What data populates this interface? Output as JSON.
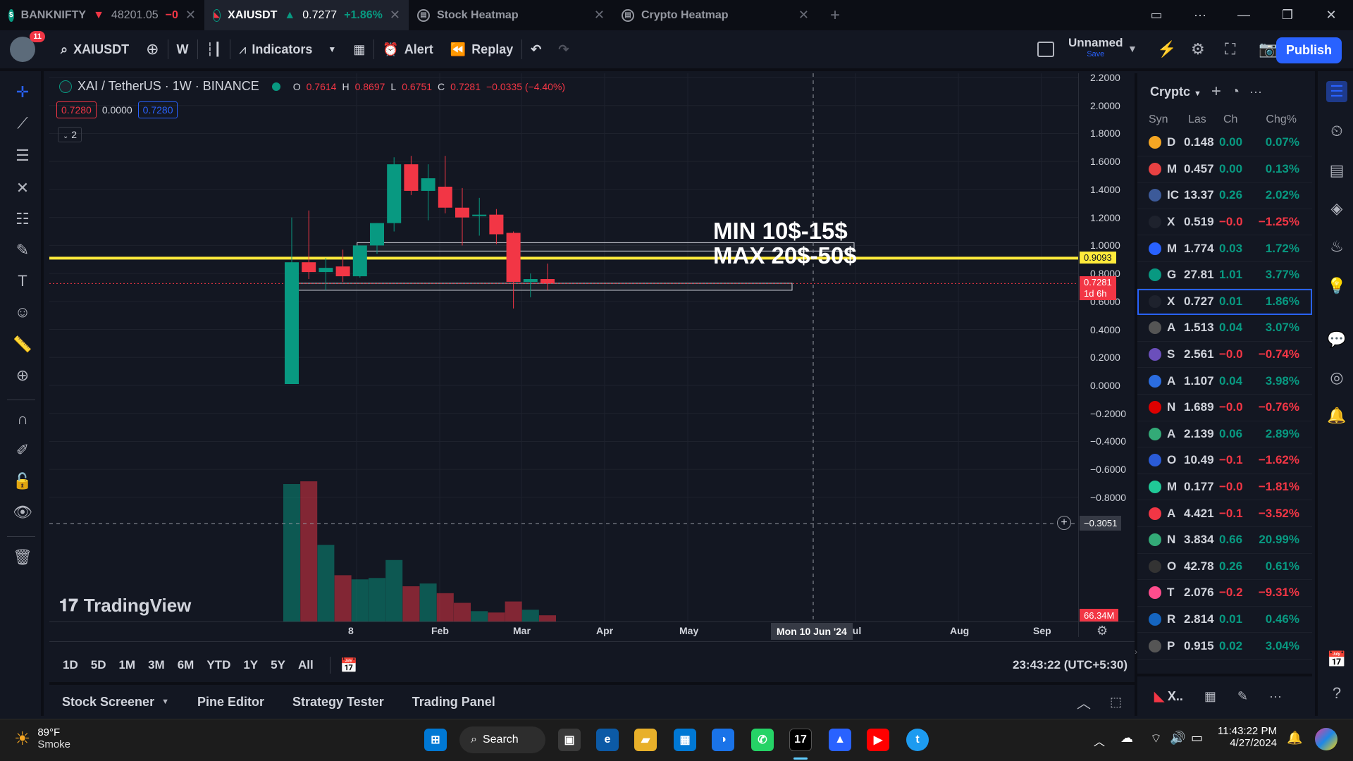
{
  "tabs": [
    {
      "symbol": "BANKNIFTY",
      "arrow": "▼",
      "price": "48201.05",
      "change": "−0"
    },
    {
      "symbol": "XAIUSDT",
      "arrow": "▲",
      "price": "0.7277",
      "change": "+1.86%"
    },
    {
      "label": "Stock Heatmap"
    },
    {
      "label": "Crypto Heatmap"
    }
  ],
  "toolbar": {
    "notification_count": "11",
    "symbol": "XAIUSDT",
    "interval": "W",
    "indicators": "Indicators",
    "alert": "Alert",
    "replay": "Replay",
    "layout_name": "Unnamed",
    "layout_save": "Save",
    "publish": "Publish"
  },
  "legend": {
    "title": "XAI / TetherUS · 1W · BINANCE",
    "o_label": "O",
    "o": "0.7614",
    "h_label": "H",
    "h": "0.8697",
    "l_label": "L",
    "l": "0.6751",
    "c_label": "C",
    "c": "0.7281",
    "change": "−0.0335 (−4.40%)",
    "bid": "0.7280",
    "spread": "0.0000",
    "ask": "0.7280",
    "collapsed_count": "2"
  },
  "annotation": {
    "line1": "MIN 10$-15$",
    "line2": "MAX 20$-50$"
  },
  "watermark": "TradingView",
  "price_axis": {
    "ticks": [
      "2.2000",
      "2.0000",
      "1.8000",
      "1.6000",
      "1.4000",
      "1.2000",
      "1.0000",
      "0.8000",
      "0.6000",
      "0.4000",
      "0.2000",
      "0.0000",
      "−0.2000",
      "−0.4000",
      "−0.6000",
      "−0.8000"
    ],
    "hline_label": "0.9093",
    "last_price": "0.7281",
    "countdown": "1d 6h",
    "crosshair_price": "−0.3051",
    "volume_label": "66.34M"
  },
  "time_axis": {
    "ticks": [
      "8",
      "Feb",
      "Mar",
      "Apr",
      "May",
      "Jul",
      "Aug",
      "Sep"
    ],
    "crosshair_label": "Mon 10 Jun '24"
  },
  "ranges": [
    "1D",
    "5D",
    "1M",
    "3M",
    "6M",
    "YTD",
    "1Y",
    "5Y",
    "All"
  ],
  "clock": "23:43:22 (UTC+5:30)",
  "bottom_tabs": [
    "Stock Screener",
    "Pine Editor",
    "Strategy Tester",
    "Trading Panel"
  ],
  "watchlist": {
    "name": "Cryptc",
    "columns": {
      "symbol": "Syn",
      "last": "Las",
      "change": "Ch",
      "change_pct": "Chg%"
    },
    "rows": [
      {
        "sym": "D",
        "last": "0.148",
        "ch": "0.00",
        "chp": "0.07%",
        "dir": "up"
      },
      {
        "sym": "M",
        "last": "0.457",
        "ch": "0.00",
        "chp": "0.13%",
        "dir": "up"
      },
      {
        "sym": "IC",
        "last": "13.37",
        "ch": "0.26",
        "chp": "2.02%",
        "dir": "up"
      },
      {
        "sym": "X",
        "last": "0.519",
        "ch": "−0.0",
        "chp": "−1.25%",
        "dir": "dn"
      },
      {
        "sym": "M",
        "last": "1.774",
        "ch": "0.03",
        "chp": "1.72%",
        "dir": "up"
      },
      {
        "sym": "G",
        "last": "27.81",
        "ch": "1.01",
        "chp": "3.77%",
        "dir": "up"
      },
      {
        "sym": "X",
        "last": "0.727",
        "ch": "0.01",
        "chp": "1.86%",
        "dir": "up"
      },
      {
        "sym": "A",
        "last": "1.513",
        "ch": "0.04",
        "chp": "3.07%",
        "dir": "up"
      },
      {
        "sym": "S",
        "last": "2.561",
        "ch": "−0.0",
        "chp": "−0.74%",
        "dir": "dn"
      },
      {
        "sym": "A",
        "last": "1.107",
        "ch": "0.04",
        "chp": "3.98%",
        "dir": "up"
      },
      {
        "sym": "N",
        "last": "1.689",
        "ch": "−0.0",
        "chp": "−0.76%",
        "dir": "dn"
      },
      {
        "sym": "A",
        "last": "2.139",
        "ch": "0.06",
        "chp": "2.89%",
        "dir": "up"
      },
      {
        "sym": "O",
        "last": "10.49",
        "ch": "−0.1",
        "chp": "−1.62%",
        "dir": "dn"
      },
      {
        "sym": "M",
        "last": "0.177",
        "ch": "−0.0",
        "chp": "−1.81%",
        "dir": "dn"
      },
      {
        "sym": "A",
        "last": "4.421",
        "ch": "−0.1",
        "chp": "−3.52%",
        "dir": "dn"
      },
      {
        "sym": "N",
        "last": "3.834",
        "ch": "0.66",
        "chp": "20.99%",
        "dir": "up"
      },
      {
        "sym": "O",
        "last": "42.78",
        "ch": "0.26",
        "chp": "0.61%",
        "dir": "up"
      },
      {
        "sym": "T",
        "last": "2.076",
        "ch": "−0.2",
        "chp": "−9.31%",
        "dir": "dn"
      },
      {
        "sym": "R",
        "last": "2.814",
        "ch": "0.01",
        "chp": "0.46%",
        "dir": "up"
      },
      {
        "sym": "P",
        "last": "0.915",
        "ch": "0.02",
        "chp": "3.04%",
        "dir": "up"
      }
    ],
    "footer_symbol": "X.."
  },
  "candles": [
    {
      "o": 0.01,
      "h": 1.2,
      "l": 0.01,
      "c": 0.88,
      "vol": 1.0
    },
    {
      "o": 0.88,
      "h": 1.25,
      "l": 0.76,
      "c": 0.81,
      "vol": 1.02
    },
    {
      "o": 0.81,
      "h": 0.91,
      "l": 0.68,
      "c": 0.84,
      "vol": 0.56
    },
    {
      "o": 0.85,
      "h": 0.97,
      "l": 0.74,
      "c": 0.78,
      "vol": 0.34
    },
    {
      "o": 0.78,
      "h": 1.0,
      "l": 0.77,
      "c": 1.0,
      "vol": 0.31
    },
    {
      "o": 1.0,
      "h": 1.16,
      "l": 0.94,
      "c": 1.16,
      "vol": 0.32
    },
    {
      "o": 1.16,
      "h": 1.63,
      "l": 1.1,
      "c": 1.58,
      "vol": 0.45
    },
    {
      "o": 1.58,
      "h": 1.64,
      "l": 1.36,
      "c": 1.39,
      "vol": 0.26
    },
    {
      "o": 1.39,
      "h": 1.58,
      "l": 1.18,
      "c": 1.48,
      "vol": 0.28
    },
    {
      "o": 1.42,
      "h": 1.64,
      "l": 1.23,
      "c": 1.27,
      "vol": 0.21
    },
    {
      "o": 1.27,
      "h": 1.41,
      "l": 1.0,
      "c": 1.2,
      "vol": 0.14
    },
    {
      "o": 1.21,
      "h": 1.34,
      "l": 1.07,
      "c": 1.22,
      "vol": 0.08
    },
    {
      "o": 1.22,
      "h": 1.26,
      "l": 1.01,
      "c": 1.08,
      "vol": 0.07
    },
    {
      "o": 1.09,
      "h": 1.1,
      "l": 0.55,
      "c": 0.74,
      "vol": 0.15
    },
    {
      "o": 0.74,
      "h": 0.8,
      "l": 0.63,
      "c": 0.76,
      "vol": 0.09
    },
    {
      "o": 0.76,
      "h": 0.87,
      "l": 0.68,
      "c": 0.73,
      "vol": 0.05
    }
  ],
  "zones": [
    {
      "top": 1.02,
      "bottom": 0.96,
      "from_bar": 4,
      "to_x": "Jun"
    },
    {
      "top": 0.73,
      "bottom": 0.68,
      "from_bar": 0,
      "to_x": "May"
    }
  ],
  "colors": {
    "up": "#089981",
    "down": "#f23645",
    "hline": "#ffeb3b",
    "accent": "#2962ff"
  },
  "taskbar": {
    "weather_temp": "89°F",
    "weather_desc": "Smoke",
    "search": "Search",
    "time": "11:43:22 PM",
    "date": "4/27/2024"
  }
}
